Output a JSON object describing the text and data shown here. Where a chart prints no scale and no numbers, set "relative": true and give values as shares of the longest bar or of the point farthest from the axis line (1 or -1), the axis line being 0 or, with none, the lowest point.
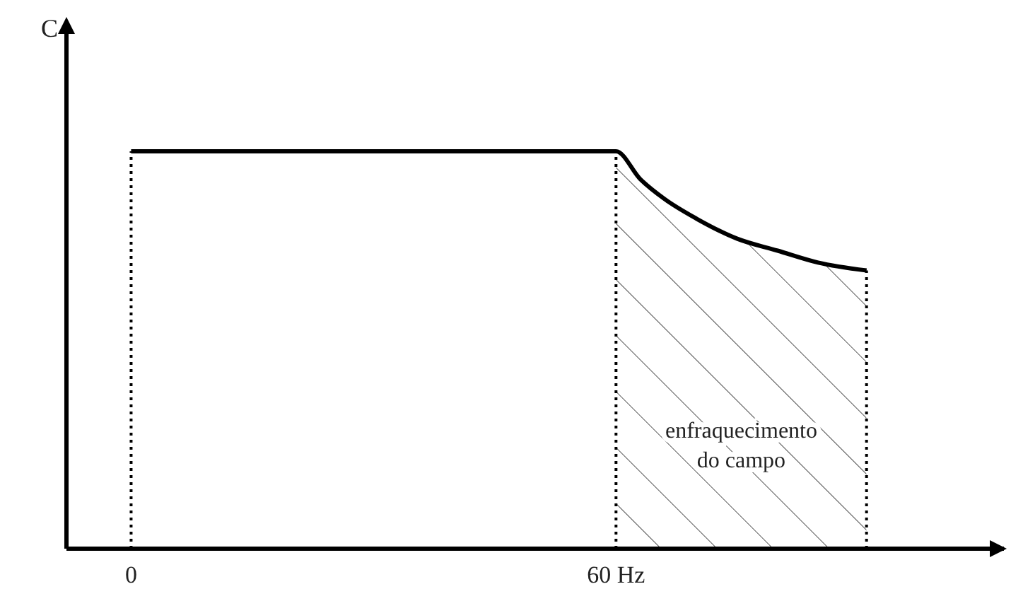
{
  "chart_data": {
    "type": "line",
    "relative": true,
    "ylabel": "C",
    "xlim": [
      -8,
      108
    ],
    "xticks": [
      {
        "value": 0,
        "label": "0"
      },
      {
        "value": 60,
        "label": "60 Hz"
      }
    ],
    "x": [
      0,
      60,
      63,
      66,
      70,
      75,
      80,
      85,
      91
    ],
    "series": [
      {
        "color": "#000000",
        "values": [
          1,
          1,
          0.93,
          0.88,
          0.83,
          0.78,
          0.75,
          0.72,
          0.7
        ]
      }
    ],
    "ref_lines": [
      {
        "axis": "x",
        "value": 0,
        "line_style": "dotted"
      },
      {
        "axis": "x",
        "value": 60,
        "line_style": "dotted"
      },
      {
        "axis": "x",
        "value": 91,
        "line_style": "dotted"
      }
    ],
    "bands": [
      {
        "axis": "x",
        "from": 60,
        "to": 91,
        "label": "enfraquecimento do campo"
      }
    ],
    "line_style": "solid"
  }
}
